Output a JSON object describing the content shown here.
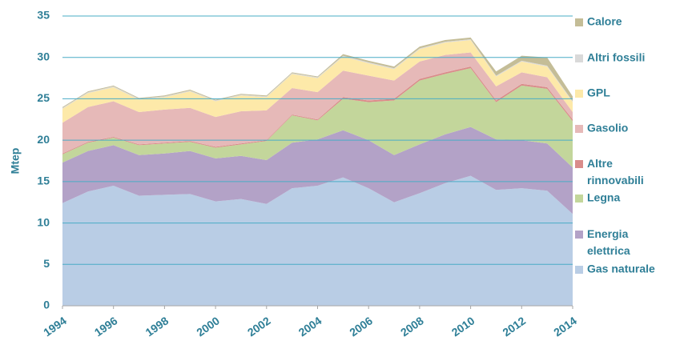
{
  "chart_data": {
    "type": "stacked-area",
    "y_label": "Mtep",
    "x": [
      1994,
      1995,
      1996,
      1997,
      1998,
      1999,
      2000,
      2001,
      2002,
      2003,
      2004,
      2005,
      2006,
      2007,
      2008,
      2009,
      2010,
      2011,
      2012,
      2013,
      2014
    ],
    "xlim": [
      1994,
      2014
    ],
    "xticks": [
      1994,
      1996,
      1998,
      2000,
      2002,
      2004,
      2006,
      2008,
      2010,
      2012,
      2014
    ],
    "ylim": [
      0,
      35
    ],
    "yticks": [
      0,
      5,
      10,
      15,
      20,
      25,
      30,
      35
    ],
    "grid": true,
    "legend": "right",
    "series": [
      {
        "name": "Gas naturale",
        "color": "#b9cde5",
        "values": [
          12.4,
          13.8,
          14.5,
          13.3,
          13.4,
          13.5,
          12.6,
          12.9,
          12.3,
          14.2,
          14.5,
          15.5,
          14.2,
          12.5,
          13.6,
          14.8,
          15.7,
          14.0,
          14.2,
          13.9,
          11.1
        ]
      },
      {
        "name": "Energia elettrica",
        "color": "#b3a2c7",
        "values": [
          4.9,
          4.9,
          4.9,
          4.9,
          5.0,
          5.2,
          5.2,
          5.2,
          5.3,
          5.5,
          5.6,
          5.7,
          5.8,
          5.7,
          5.9,
          5.9,
          5.9,
          6.1,
          5.8,
          5.7,
          5.6
        ]
      },
      {
        "name": "Legna",
        "color": "#c3d69b",
        "values": [
          1.0,
          1.0,
          0.9,
          1.2,
          1.2,
          1.1,
          1.3,
          1.4,
          2.3,
          3.3,
          2.3,
          3.8,
          4.6,
          6.6,
          7.7,
          7.3,
          7.1,
          4.5,
          6.6,
          6.6,
          5.6
        ]
      },
      {
        "name": "Altre rinnovabili",
        "color": "#d98c8a",
        "values": [
          0.1,
          0.1,
          0.1,
          0.1,
          0.1,
          0.1,
          0.1,
          0.1,
          0.1,
          0.1,
          0.1,
          0.2,
          0.2,
          0.2,
          0.2,
          0.2,
          0.2,
          0.2,
          0.2,
          0.2,
          0.2
        ]
      },
      {
        "name": "Gasolio",
        "color": "#e6b9b8",
        "values": [
          3.7,
          4.2,
          4.3,
          3.9,
          4.0,
          4.0,
          3.6,
          3.9,
          3.6,
          3.2,
          3.3,
          3.2,
          3.0,
          2.2,
          2.1,
          2.1,
          1.7,
          1.7,
          1.4,
          1.2,
          0.9
        ]
      },
      {
        "name": "GPL",
        "color": "#fde9a9",
        "values": [
          1.7,
          1.7,
          1.7,
          1.5,
          1.5,
          2.0,
          1.9,
          1.9,
          1.6,
          1.7,
          1.7,
          1.7,
          1.5,
          1.4,
          1.5,
          1.5,
          1.5,
          1.2,
          1.3,
          1.3,
          1.2
        ]
      },
      {
        "name": "Altri fossili",
        "color": "#d9d9d9",
        "values": [
          0.1,
          0.1,
          0.1,
          0.1,
          0.1,
          0.1,
          0.1,
          0.1,
          0.1,
          0.1,
          0.1,
          0.1,
          0.1,
          0.1,
          0.1,
          0.1,
          0.1,
          0.1,
          0.1,
          0.1,
          0.1
        ]
      },
      {
        "name": "Calore",
        "color": "#c4bd97",
        "values": [
          0.1,
          0.1,
          0.1,
          0.1,
          0.1,
          0.1,
          0.1,
          0.1,
          0.1,
          0.1,
          0.1,
          0.2,
          0.2,
          0.2,
          0.2,
          0.2,
          0.2,
          0.5,
          0.6,
          1.0,
          0.6
        ]
      }
    ]
  }
}
